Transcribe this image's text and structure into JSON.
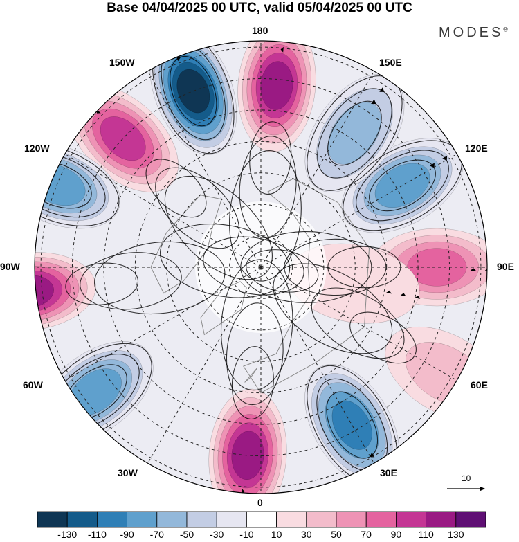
{
  "title": "Base 04/04/2025 00 UTC, valid 05/04/2025 00 UTC",
  "brand": {
    "name": "MODES",
    "mark": "®"
  },
  "longitude_labels": {
    "n180": "180",
    "w150": "150W",
    "e150": "150E",
    "w120": "120W",
    "e120": "120E",
    "w90": "90W",
    "e90": "90E",
    "w60": "60W",
    "e60": "60E",
    "w30": "30W",
    "e30": "30E",
    "s0": "0"
  },
  "vector_scale": {
    "label": "10"
  },
  "colorbar": {
    "colors": [
      "#0f3654",
      "#145b8a",
      "#2f7fb6",
      "#5fa0cd",
      "#93b8da",
      "#c3cde4",
      "#e6e6f1",
      "#ffffff",
      "#f9dce1",
      "#f3bccb",
      "#ee93b5",
      "#e4639f",
      "#c43694",
      "#9a1a83",
      "#5f0f74"
    ],
    "ticks": [
      "-130",
      "-110",
      "-90",
      "-70",
      "-50",
      "-30",
      "-10",
      "10",
      "30",
      "50",
      "70",
      "90",
      "110",
      "130"
    ]
  },
  "anomaly_cells": [
    {
      "lon": 175,
      "lat": 32,
      "value": 120
    },
    {
      "lon": -159,
      "lat": 30,
      "value": -130
    },
    {
      "lon": -133,
      "lat": 30,
      "value": 105
    },
    {
      "lon": -112,
      "lat": 20,
      "value": -80
    },
    {
      "lon": -84,
      "lat": 16,
      "value": 110
    },
    {
      "lon": -53,
      "lat": 24,
      "value": -75
    },
    {
      "lon": -4,
      "lat": 30,
      "value": 120
    },
    {
      "lon": 30,
      "lat": 32,
      "value": -105
    },
    {
      "lon": 60,
      "lat": 22,
      "value": 40
    },
    {
      "lon": 90,
      "lat": 34,
      "value": 75
    },
    {
      "lon": 120,
      "lat": 38,
      "value": -75
    },
    {
      "lon": 145,
      "lat": 38,
      "value": -55
    },
    {
      "lon": 80,
      "lat": 60,
      "value": 25
    }
  ]
}
